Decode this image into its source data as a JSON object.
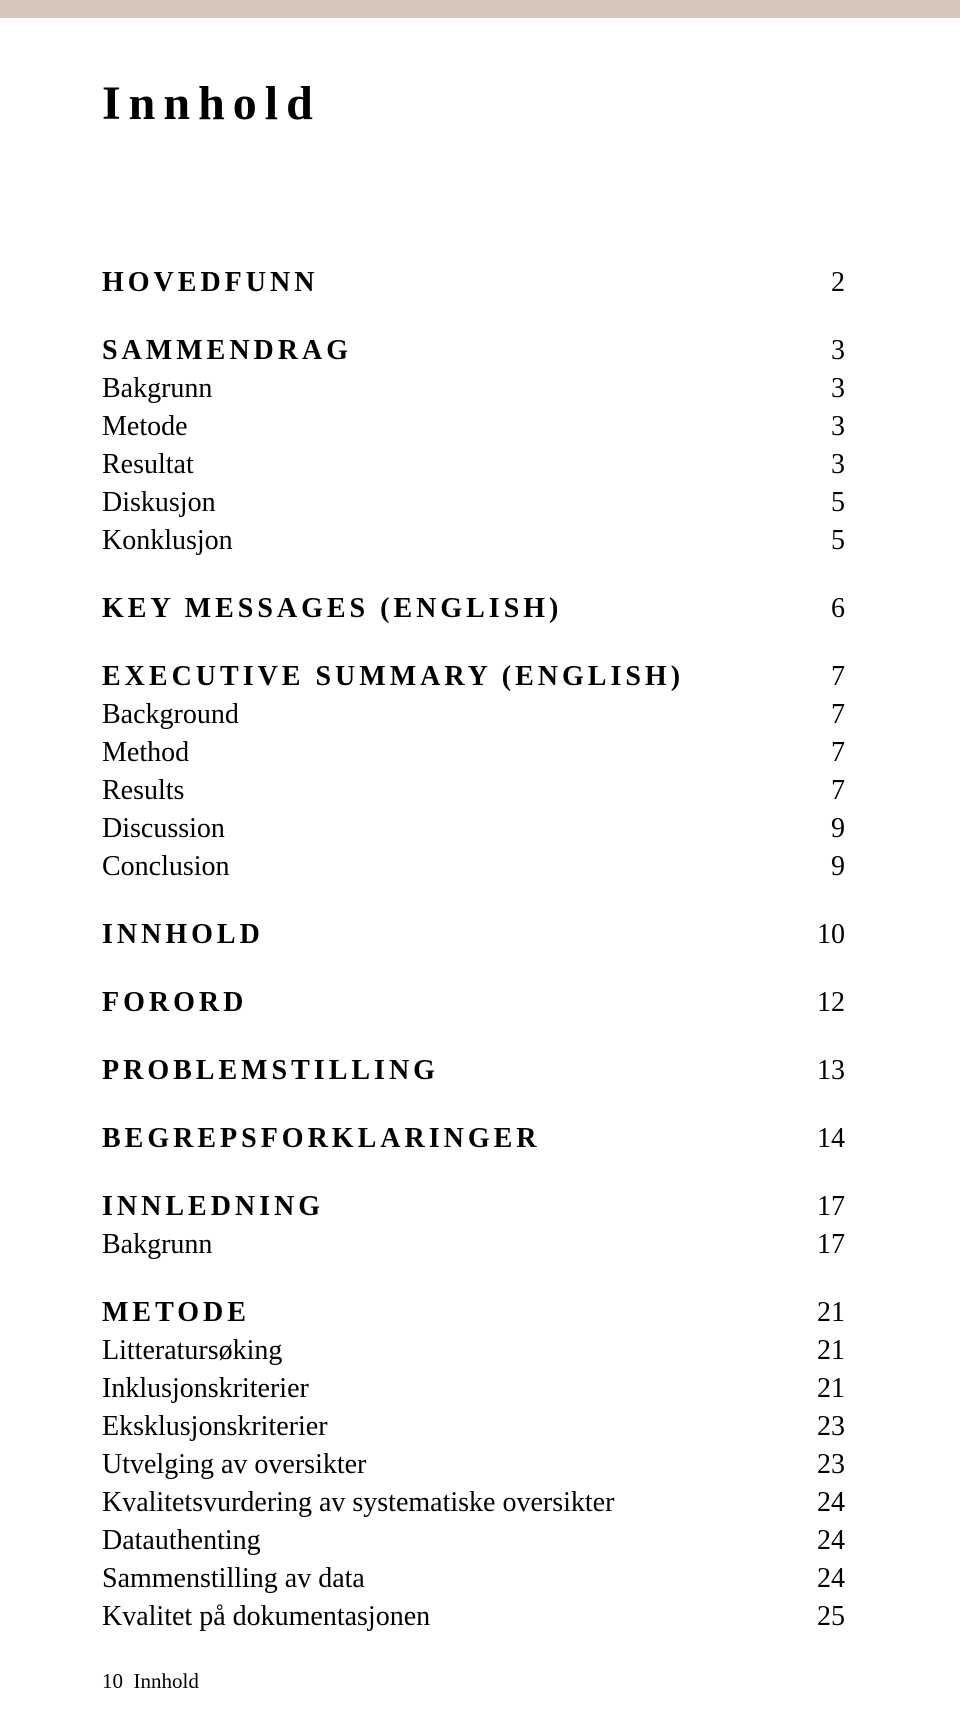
{
  "colors": {
    "band": "#d6c6bb",
    "text": "#000000",
    "background": "#ffffff"
  },
  "title": "Innhold",
  "toc": {
    "block1": {
      "section": {
        "label": "HOVEDFUNN",
        "page": "2"
      }
    },
    "block2": {
      "section": {
        "label": "SAMMENDRAG",
        "page": "3"
      },
      "items": [
        {
          "label": "Bakgrunn",
          "page": "3"
        },
        {
          "label": "Metode",
          "page": "3"
        },
        {
          "label": "Resultat",
          "page": "3"
        },
        {
          "label": "Diskusjon",
          "page": "5"
        },
        {
          "label": "Konklusjon",
          "page": "5"
        }
      ]
    },
    "block3": {
      "section": {
        "label": "KEY MESSAGES (ENGLISH)",
        "page": "6"
      }
    },
    "block4": {
      "section": {
        "label": "EXECUTIVE SUMMARY (ENGLISH)",
        "page": "7"
      },
      "items": [
        {
          "label": "Background",
          "page": "7"
        },
        {
          "label": "Method",
          "page": "7"
        },
        {
          "label": "Results",
          "page": "7"
        },
        {
          "label": "Discussion",
          "page": "9"
        },
        {
          "label": "Conclusion",
          "page": "9"
        }
      ]
    },
    "block5": {
      "section": {
        "label": "INNHOLD",
        "page": "10"
      }
    },
    "block6": {
      "section": {
        "label": "FORORD",
        "page": "12"
      }
    },
    "block7": {
      "section": {
        "label": "PROBLEMSTILLING",
        "page": "13"
      }
    },
    "block8": {
      "section": {
        "label": "BEGREPSFORKLARINGER",
        "page": "14"
      }
    },
    "block9": {
      "section": {
        "label": "INNLEDNING",
        "page": "17"
      },
      "items": [
        {
          "label": "Bakgrunn",
          "page": "17"
        }
      ]
    },
    "block10": {
      "section": {
        "label": "METODE",
        "page": "21"
      },
      "items": [
        {
          "label": "Litteratursøking",
          "page": "21"
        },
        {
          "label": "Inklusjonskriterier",
          "page": "21"
        },
        {
          "label": "Eksklusjonskriterier",
          "page": "23"
        },
        {
          "label": "Utvelging av oversikter",
          "page": "23"
        },
        {
          "label": "Kvalitetsvurdering av systematiske oversikter",
          "page": "24"
        },
        {
          "label": "Datauthenting",
          "page": "24"
        },
        {
          "label": "Sammenstilling av data",
          "page": "24"
        },
        {
          "label": "Kvalitet på dokumentasjonen",
          "page": "25"
        }
      ]
    }
  },
  "footer": {
    "pagenum": "10",
    "label": "Innhold"
  }
}
